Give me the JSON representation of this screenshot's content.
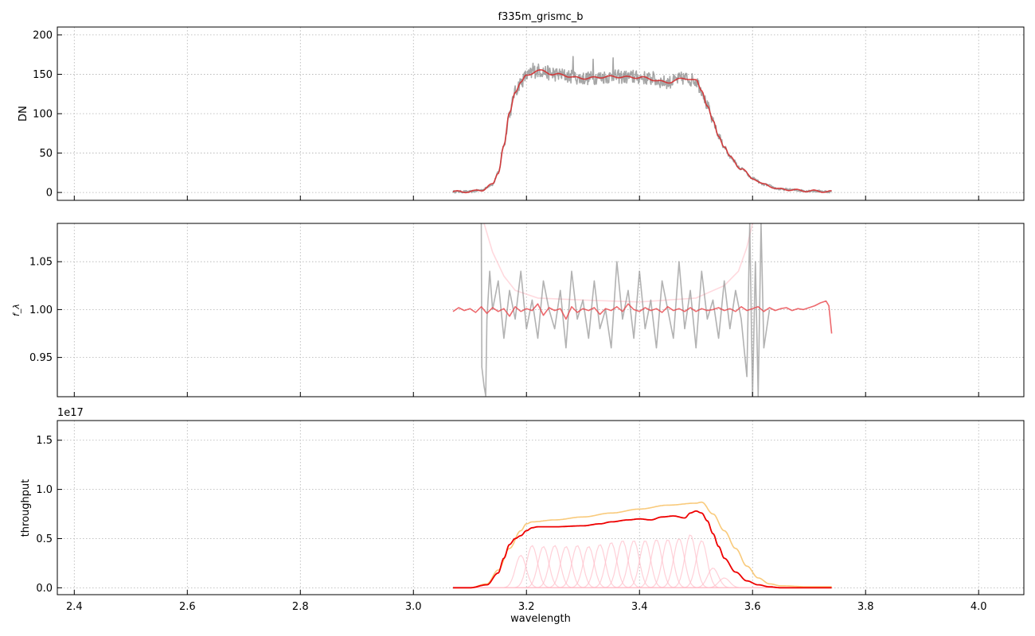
{
  "chart_data": [
    {
      "type": "line",
      "title": "f335m_grismc_b",
      "ylabel": "DN",
      "xlabel": "",
      "xlim": [
        2.37,
        4.08
      ],
      "ylim": [
        -10,
        210
      ],
      "xticks": [
        2.4,
        2.6,
        2.8,
        3.0,
        3.2,
        3.4,
        3.6,
        3.8,
        4.0
      ],
      "yticks": [
        0,
        50,
        100,
        150,
        200
      ],
      "yticklabels": [
        "0",
        "50",
        "100",
        "150",
        "200"
      ],
      "grid": true,
      "show_xticklabels": false,
      "series": [
        {
          "color": "#777777",
          "opacity": 0.65,
          "noise": 0.06,
          "x": [
            3.07,
            3.1,
            3.12,
            3.14,
            3.15,
            3.16,
            3.17,
            3.18,
            3.19,
            3.2,
            3.22,
            3.25,
            3.3,
            3.35,
            3.4,
            3.45,
            3.48,
            3.5,
            3.51,
            3.52,
            3.53,
            3.54,
            3.55,
            3.56,
            3.58,
            3.6,
            3.62,
            3.65,
            3.7,
            3.74
          ],
          "y": [
            1,
            1,
            3,
            10,
            25,
            60,
            100,
            128,
            140,
            148,
            155,
            150,
            145,
            147,
            146,
            140,
            145,
            142,
            130,
            110,
            90,
            72,
            58,
            45,
            30,
            18,
            10,
            4,
            2,
            1
          ]
        },
        {
          "color": "#d62728",
          "opacity": 0.85,
          "noise": 0,
          "x": [
            3.07,
            3.1,
            3.12,
            3.14,
            3.15,
            3.16,
            3.17,
            3.18,
            3.19,
            3.2,
            3.22,
            3.25,
            3.3,
            3.35,
            3.4,
            3.45,
            3.48,
            3.5,
            3.51,
            3.52,
            3.53,
            3.54,
            3.55,
            3.56,
            3.58,
            3.6,
            3.62,
            3.65,
            3.7,
            3.74
          ],
          "y": [
            1,
            1,
            3,
            10,
            25,
            60,
            100,
            128,
            140,
            148,
            155,
            150,
            145,
            147,
            146,
            140,
            145,
            142,
            130,
            110,
            90,
            72,
            58,
            45,
            30,
            18,
            10,
            4,
            2,
            1
          ]
        }
      ]
    },
    {
      "type": "line",
      "title": "",
      "ylabel": "f_λ",
      "xlabel": "",
      "xlim": [
        2.37,
        4.08
      ],
      "ylim": [
        0.909,
        1.09
      ],
      "xticks": [
        2.4,
        2.6,
        2.8,
        3.0,
        3.2,
        3.4,
        3.6,
        3.8,
        4.0
      ],
      "yticks": [
        0.95,
        1.0,
        1.05
      ],
      "yticklabels": [
        "0.95",
        "1.00",
        "1.05"
      ],
      "grid": true,
      "show_xticklabels": false,
      "series": [
        {
          "color": "#ffc0c8",
          "opacity": 0.6,
          "noise": 0,
          "x": [
            3.125,
            3.14,
            3.16,
            3.18,
            3.22,
            3.3,
            3.4,
            3.5,
            3.55,
            3.575,
            3.59,
            3.6
          ],
          "y": [
            1.09,
            1.06,
            1.035,
            1.02,
            1.012,
            1.01,
            1.008,
            1.012,
            1.025,
            1.04,
            1.065,
            1.09
          ]
        },
        {
          "color": "#888888",
          "opacity": 0.65,
          "noise": 0,
          "x": [
            3.12,
            3.121,
            3.125,
            3.128,
            3.13,
            3.135,
            3.14,
            3.15,
            3.16,
            3.17,
            3.18,
            3.19,
            3.2,
            3.21,
            3.22,
            3.23,
            3.24,
            3.25,
            3.26,
            3.27,
            3.28,
            3.29,
            3.3,
            3.31,
            3.32,
            3.33,
            3.34,
            3.35,
            3.36,
            3.37,
            3.38,
            3.39,
            3.4,
            3.41,
            3.42,
            3.43,
            3.44,
            3.45,
            3.46,
            3.47,
            3.48,
            3.49,
            3.5,
            3.51,
            3.52,
            3.53,
            3.54,
            3.55,
            3.56,
            3.57,
            3.58,
            3.59,
            3.595,
            3.6,
            3.605,
            3.61,
            3.615,
            3.62,
            3.63
          ],
          "y": [
            1.09,
            0.94,
            0.92,
            0.91,
            0.99,
            1.04,
            1.0,
            1.03,
            0.97,
            1.02,
            0.99,
            1.04,
            0.98,
            1.01,
            0.97,
            1.03,
            1.0,
            0.98,
            1.02,
            0.96,
            1.04,
            0.99,
            1.01,
            0.97,
            1.03,
            0.98,
            1.0,
            0.96,
            1.05,
            0.99,
            1.02,
            0.97,
            1.04,
            0.98,
            1.01,
            0.96,
            1.03,
            1.0,
            0.97,
            1.05,
            0.98,
            1.02,
            0.96,
            1.04,
            0.99,
            1.01,
            0.97,
            1.03,
            0.98,
            1.02,
            0.99,
            0.93,
            1.09,
            0.91,
            1.05,
            0.91,
            1.09,
            0.96,
            1.0
          ]
        },
        {
          "color": "#e8454a",
          "opacity": 0.8,
          "noise": 0,
          "x": [
            3.07,
            3.08,
            3.09,
            3.1,
            3.11,
            3.12,
            3.13,
            3.14,
            3.15,
            3.16,
            3.17,
            3.18,
            3.19,
            3.2,
            3.21,
            3.22,
            3.23,
            3.24,
            3.25,
            3.26,
            3.27,
            3.28,
            3.29,
            3.3,
            3.31,
            3.32,
            3.33,
            3.34,
            3.35,
            3.36,
            3.37,
            3.38,
            3.39,
            3.4,
            3.41,
            3.42,
            3.43,
            3.44,
            3.45,
            3.46,
            3.47,
            3.48,
            3.49,
            3.5,
            3.51,
            3.52,
            3.53,
            3.54,
            3.55,
            3.56,
            3.57,
            3.58,
            3.59,
            3.6,
            3.61,
            3.62,
            3.63,
            3.64,
            3.65,
            3.66,
            3.67,
            3.68,
            3.69,
            3.7,
            3.71,
            3.72,
            3.73,
            3.735,
            3.74
          ],
          "y": [
            0.998,
            1.002,
            0.999,
            1.001,
            0.997,
            1.003,
            0.996,
            1.002,
            0.998,
            1.001,
            0.993,
            1.003,
            0.998,
            1.001,
            0.999,
            1.006,
            0.994,
            1.002,
            0.999,
            1.001,
            0.99,
            1.003,
            0.997,
            1.001,
            0.999,
            1.002,
            0.995,
            1.001,
            0.999,
            1.003,
            0.998,
            1.006,
            1.0,
            0.998,
            1.002,
            0.999,
            1.001,
            0.997,
            1.003,
            0.999,
            1.001,
            0.998,
            1.002,
            0.998,
            1.001,
            0.999,
            1.0,
            1.002,
            0.999,
            1.001,
            0.998,
            1.003,
            0.999,
            1.001,
            1.003,
            0.998,
            1.002,
            0.999,
            1.001,
            1.002,
            0.999,
            1.001,
            1.0,
            1.002,
            1.004,
            1.007,
            1.009,
            1.004,
            0.975
          ]
        }
      ]
    },
    {
      "type": "line",
      "title": "",
      "ylabel": "throughput",
      "xlabel": "wavelength",
      "offset_text": "1e17",
      "xlim": [
        2.37,
        4.08
      ],
      "ylim": [
        -0.07,
        1.7
      ],
      "xticks": [
        2.4,
        2.6,
        2.8,
        3.0,
        3.2,
        3.4,
        3.6,
        3.8,
        4.0
      ],
      "xticklabels": [
        "2.4",
        "2.6",
        "2.8",
        "3.0",
        "3.2",
        "3.4",
        "3.6",
        "3.8",
        "4.0"
      ],
      "yticks": [
        0.0,
        0.5,
        1.0,
        1.5
      ],
      "yticklabels": [
        "0.0",
        "0.5",
        "1.0",
        "1.5"
      ],
      "grid": true,
      "show_xticklabels": true,
      "gaussian_components": {
        "color": "#ffc0cb",
        "opacity": 0.75,
        "sigma": 0.0095,
        "centers": [
          3.19,
          3.21,
          3.23,
          3.25,
          3.27,
          3.29,
          3.31,
          3.33,
          3.35,
          3.37,
          3.39,
          3.41,
          3.43,
          3.45,
          3.47,
          3.49,
          3.51,
          3.53,
          3.55
        ],
        "amplitudes": [
          0.33,
          0.43,
          0.42,
          0.43,
          0.42,
          0.43,
          0.42,
          0.44,
          0.46,
          0.48,
          0.48,
          0.48,
          0.49,
          0.49,
          0.5,
          0.54,
          0.48,
          0.2,
          0.1
        ]
      },
      "series": [
        {
          "color": "#f5a623",
          "opacity": 0.6,
          "noise": 0,
          "x": [
            3.07,
            3.1,
            3.13,
            3.15,
            3.17,
            3.19,
            3.2,
            3.21,
            3.25,
            3.3,
            3.35,
            3.4,
            3.45,
            3.5,
            3.51,
            3.53,
            3.55,
            3.57,
            3.59,
            3.61,
            3.63,
            3.65,
            3.7,
            3.74
          ],
          "y": [
            0.0,
            0.0,
            0.04,
            0.18,
            0.4,
            0.58,
            0.65,
            0.67,
            0.69,
            0.72,
            0.76,
            0.8,
            0.84,
            0.86,
            0.87,
            0.75,
            0.58,
            0.4,
            0.22,
            0.1,
            0.04,
            0.02,
            0.01,
            0.01
          ]
        },
        {
          "color": "#ee0000",
          "opacity": 1,
          "noise": 0,
          "x": [
            3.07,
            3.1,
            3.13,
            3.15,
            3.16,
            3.17,
            3.18,
            3.19,
            3.2,
            3.21,
            3.22,
            3.25,
            3.3,
            3.33,
            3.35,
            3.38,
            3.4,
            3.42,
            3.44,
            3.46,
            3.48,
            3.49,
            3.5,
            3.51,
            3.52,
            3.53,
            3.54,
            3.55,
            3.57,
            3.59,
            3.61,
            3.63,
            3.65,
            3.7,
            3.74
          ],
          "y": [
            0.0,
            0.0,
            0.03,
            0.15,
            0.3,
            0.44,
            0.5,
            0.53,
            0.58,
            0.61,
            0.62,
            0.62,
            0.63,
            0.65,
            0.67,
            0.69,
            0.7,
            0.69,
            0.72,
            0.73,
            0.71,
            0.76,
            0.78,
            0.76,
            0.68,
            0.55,
            0.42,
            0.3,
            0.16,
            0.07,
            0.03,
            0.01,
            0.0,
            0.0,
            0.0
          ]
        }
      ]
    }
  ]
}
